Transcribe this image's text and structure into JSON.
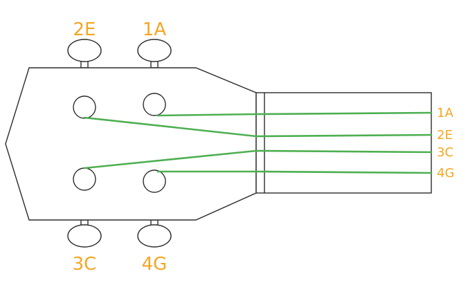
{
  "colors": {
    "label": "#f5a623",
    "string": "#4caf50",
    "outline": "#2b2b2b"
  },
  "pegs": {
    "top_left": "2E",
    "top_right": "1A",
    "bottom_left": "3C",
    "bottom_right": "4G"
  },
  "strings": [
    {
      "label": "1A"
    },
    {
      "label": "2E"
    },
    {
      "label": "3C"
    },
    {
      "label": "4G"
    }
  ]
}
